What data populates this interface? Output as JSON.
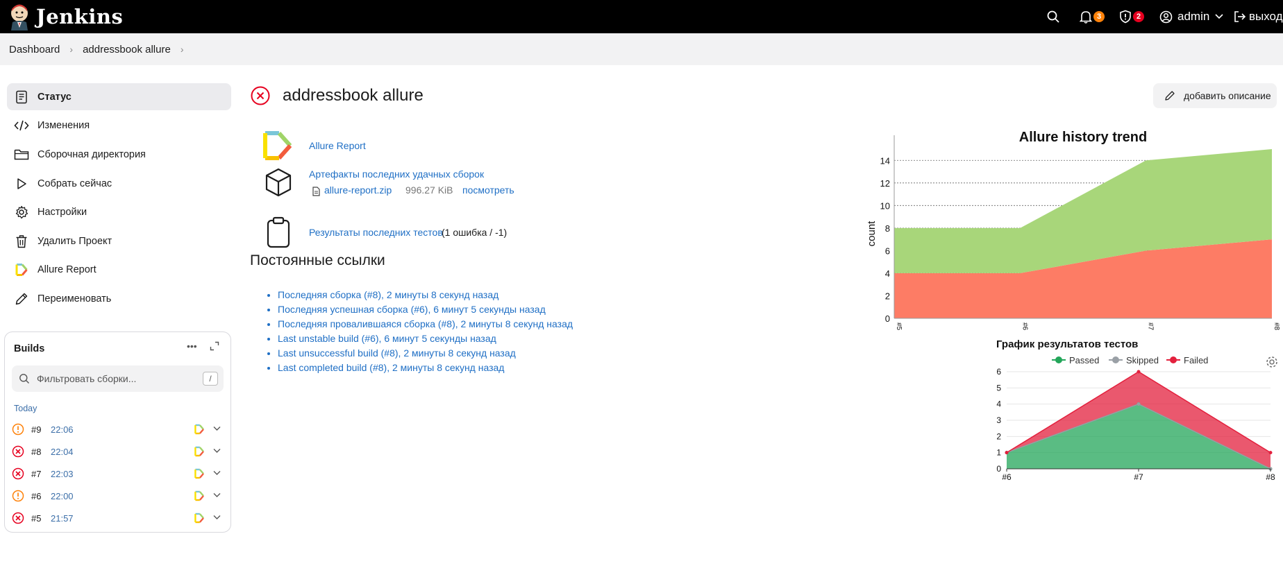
{
  "header": {
    "brand": "Jenkins",
    "notifications_count": "3",
    "security_count": "2",
    "user": "admin",
    "logout": "выход"
  },
  "breadcrumb": [
    "Dashboard",
    "addressbook allure"
  ],
  "sidebar": {
    "items": [
      {
        "label": "Статус",
        "icon": "status-icon"
      },
      {
        "label": "Изменения",
        "icon": "code-icon"
      },
      {
        "label": "Сборочная директория",
        "icon": "folder-icon"
      },
      {
        "label": "Собрать сейчас",
        "icon": "play-icon"
      },
      {
        "label": "Настройки",
        "icon": "gear-icon"
      },
      {
        "label": "Удалить Проект",
        "icon": "trash-icon"
      },
      {
        "label": "Allure Report",
        "icon": "allure-icon"
      },
      {
        "label": "Переименовать",
        "icon": "pencil-icon"
      }
    ]
  },
  "builds": {
    "title": "Builds",
    "filter_placeholder": "Фильтровать сборки...",
    "shortcut": "/",
    "group": "Today",
    "rows": [
      {
        "num": "#9",
        "time": "22:06",
        "status": "unstable"
      },
      {
        "num": "#8",
        "time": "22:04",
        "status": "failed"
      },
      {
        "num": "#7",
        "time": "22:03",
        "status": "failed"
      },
      {
        "num": "#6",
        "time": "22:00",
        "status": "unstable"
      },
      {
        "num": "#5",
        "time": "21:57",
        "status": "failed"
      }
    ]
  },
  "main": {
    "title": "addressbook allure",
    "add_description": "добавить описание",
    "allure_link": "Allure Report",
    "artifacts_link": "Артефакты последних удачных сборок",
    "artifact_file": "allure-report.zip",
    "artifact_size": "996.27 KiB",
    "artifact_view": "посмотреть",
    "test_results_link": "Результаты последних тестов",
    "test_results_suffix": "(1 ошибка / -1)",
    "permalinks_title": "Постоянные ссылки",
    "permalinks": [
      "Последняя сборка (#8), 2 минуты 8 секунд назад",
      "Последняя успешная сборка (#6), 6 минут 5 секунды назад",
      "Последняя провалившаяся сборка (#8), 2 минуты 8 секунд назад",
      "Last unstable build (#6), 6 минут 5 секунды назад",
      "Last unsuccessful build (#8), 2 минуты 8 секунд назад",
      "Last completed build (#8), 2 минуты 8 секунд назад"
    ]
  },
  "chart_data": [
    {
      "type": "area",
      "title": "Allure history trend",
      "ylabel": "count",
      "xlabel": "",
      "categories": [
        "#5",
        "#6",
        "#7",
        "#8"
      ],
      "ylim": [
        0,
        15
      ],
      "yticks": [
        0,
        2,
        4,
        6,
        8,
        10,
        12,
        14
      ],
      "stacked": true,
      "series": [
        {
          "name": "",
          "color": "#fd7c65",
          "values": [
            4,
            4,
            6,
            7
          ]
        },
        {
          "name": "",
          "color": "#a8d67a",
          "values": [
            4,
            4,
            8,
            8
          ]
        }
      ]
    },
    {
      "type": "area",
      "title": "График результатов тестов",
      "categories": [
        "#6",
        "#7",
        "#8"
      ],
      "ylim": [
        0,
        6
      ],
      "yticks": [
        0,
        1,
        2,
        3,
        4,
        5,
        6
      ],
      "legend": "top",
      "stacked": true,
      "series": [
        {
          "name": "Passed",
          "color": "#23a65a",
          "values": [
            1,
            4,
            0
          ]
        },
        {
          "name": "Skipped",
          "color": "#9aa0a6",
          "values": [
            0,
            0,
            0
          ]
        },
        {
          "name": "Failed",
          "color": "#e3203d",
          "values": [
            0,
            2,
            1
          ]
        }
      ]
    }
  ]
}
